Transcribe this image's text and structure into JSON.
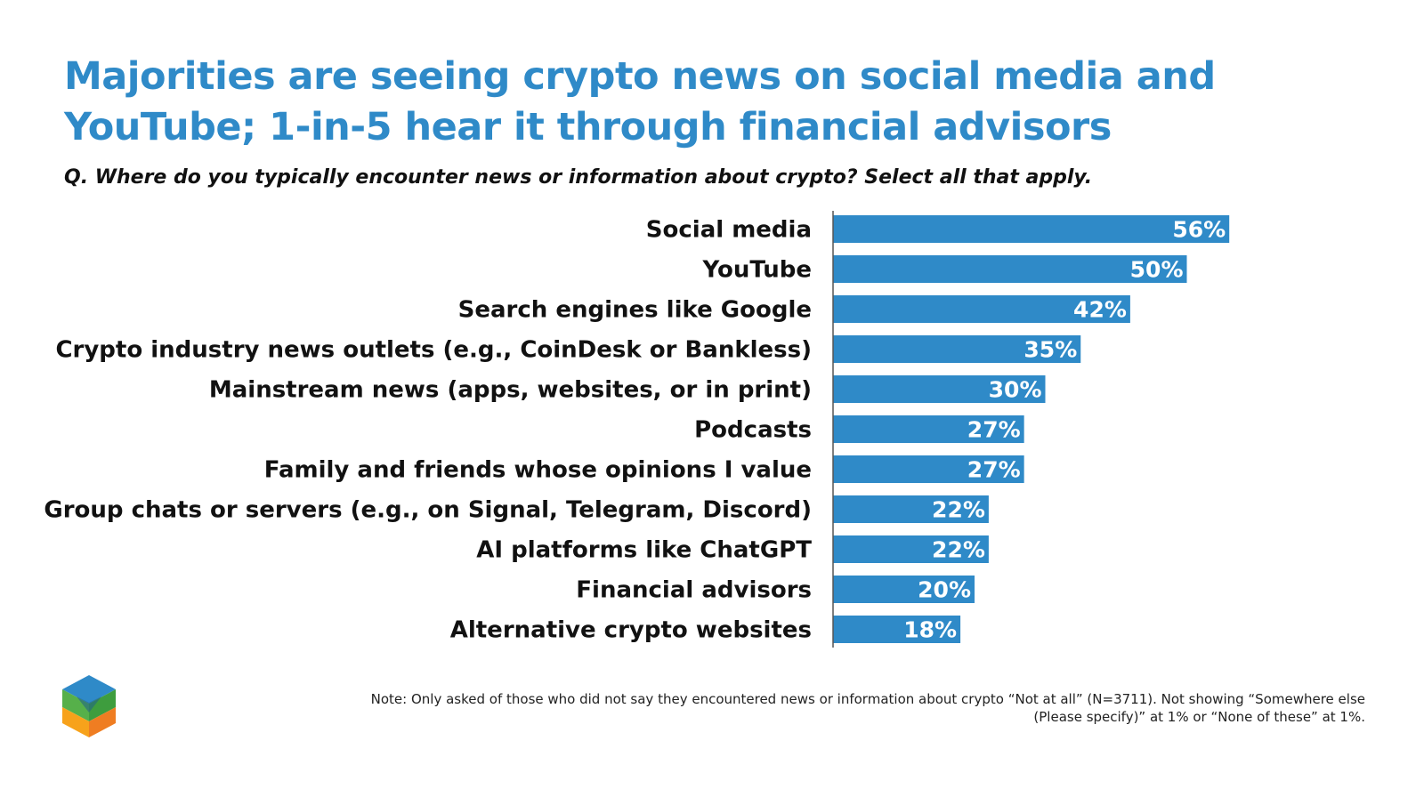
{
  "title": "Majorities are seeing crypto news on social media and YouTube; 1-in-5 hear it through financial advisors",
  "subtitle": "Q. Where do you typically encounter news or information about crypto? Select all that apply.",
  "note": "Note: Only asked of those who did not say they encountered news or information about crypto “Not at all” (N=3711). Not showing “Somewhere else (Please specify)” at 1% or “None of these” at 1%.",
  "colors": {
    "title": "#2f8ac8",
    "bar": "#2f8ac8",
    "label": "#111111",
    "value_label": "#ffffff"
  },
  "logo": {
    "icon": "cube-logo-icon"
  },
  "chart_data": {
    "type": "bar",
    "orientation": "horizontal",
    "categories": [
      "Social media",
      "YouTube",
      "Search engines like Google",
      "Crypto industry news outlets (e.g., CoinDesk or Bankless)",
      "Mainstream news (apps, websites, or in print)",
      "Podcasts",
      "Family and friends whose opinions I value",
      "Group chats or servers (e.g., on Signal, Telegram, Discord)",
      "AI platforms like ChatGPT",
      "Financial advisors",
      "Alternative crypto websites"
    ],
    "values": [
      56,
      50,
      42,
      35,
      30,
      27,
      27,
      22,
      22,
      20,
      18
    ],
    "value_labels": [
      "56%",
      "50%",
      "42%",
      "35%",
      "30%",
      "27%",
      "27%",
      "22%",
      "22%",
      "20%",
      "18%"
    ],
    "unit": "%",
    "grid": false,
    "legend": "none"
  }
}
